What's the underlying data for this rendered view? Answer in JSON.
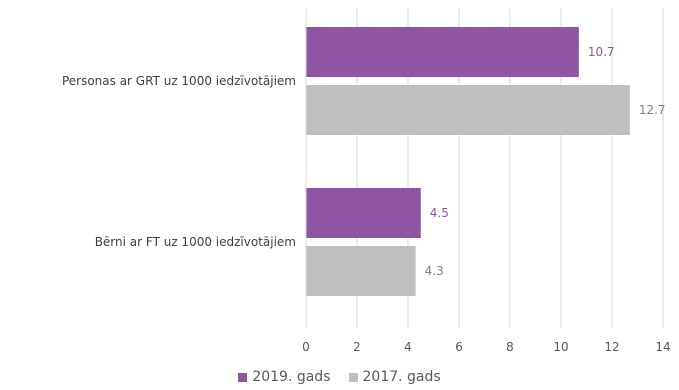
{
  "chart_data": {
    "type": "bar",
    "orientation": "horizontal",
    "categories": [
      "Personas ar GRT uz 1000 iedzīvotājiem",
      "Bērni ar FT uz 1000 iedzīvotājiem"
    ],
    "series": [
      {
        "name": "2019. gads",
        "values": [
          10.7,
          4.5
        ],
        "labels": [
          "10.7",
          "4.5"
        ],
        "color": "#8E55A3",
        "label_color": "#8E55A3"
      },
      {
        "name": "2017. gads",
        "values": [
          12.7,
          4.3
        ],
        "labels": [
          "12.7",
          "4.3"
        ],
        "color": "#BFBFBF",
        "label_color": "#7F7F7F"
      }
    ],
    "xlim": [
      0,
      14
    ],
    "xticks": [
      0,
      2,
      4,
      6,
      8,
      10,
      12,
      14
    ],
    "xtick_labels": [
      "0",
      "2",
      "4",
      "6",
      "8",
      "10",
      "12",
      "14"
    ],
    "grid": true,
    "legend_position": "bottom",
    "title": "",
    "xlabel": "",
    "ylabel": ""
  }
}
